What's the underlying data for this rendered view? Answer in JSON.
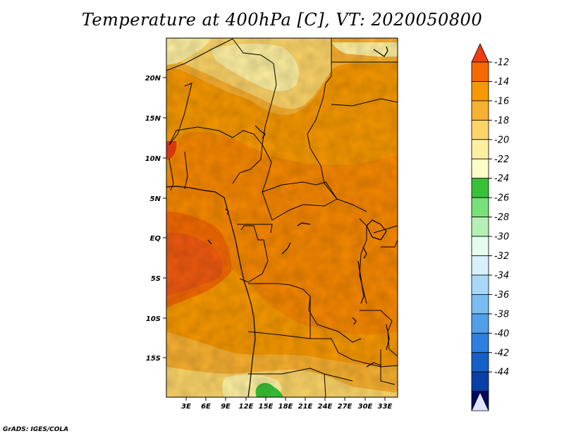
{
  "title": "Temperature at 400hPa [C], VT: 2020050800",
  "credit": "GrADS: IGES/COLA",
  "map": {
    "lat_ticks": [
      "20N",
      "15N",
      "10N",
      "5N",
      "EQ",
      "5S",
      "10S",
      "15S"
    ],
    "lon_ticks": [
      "3E",
      "6E",
      "9E",
      "12E",
      "15E",
      "18E",
      "21E",
      "24E",
      "27E",
      "30E",
      "33E"
    ],
    "lon_range": [
      0,
      35
    ],
    "lat_range": [
      -20,
      25
    ]
  },
  "colorbar": {
    "labels": [
      "-12",
      "-14",
      "-16",
      "-18",
      "-20",
      "-22",
      "-24",
      "-26",
      "-28",
      "-30",
      "-32",
      "-34",
      "-36",
      "-38",
      "-40",
      "-42",
      "-44"
    ],
    "colors": [
      "#f03c10",
      "#f56a00",
      "#f69800",
      "#f8b030",
      "#fcd468",
      "#fff0a0",
      "#fffcc8",
      "#38c038",
      "#78e078",
      "#b4f0b4",
      "#e4fcf0",
      "#d8f0fc",
      "#a8d8f8",
      "#78bcf0",
      "#50a0e8",
      "#2c80e0",
      "#1460c8",
      "#0840a8",
      "#000860",
      "#e0e4fc"
    ]
  },
  "chart_data": {
    "type": "heatmap",
    "title": "Temperature at 400hPa [C], VT: 2020050800",
    "variable": "Temperature at 400hPa",
    "units": "C",
    "valid_time": "2020050800",
    "lon_ticks": [
      "3E",
      "6E",
      "9E",
      "12E",
      "15E",
      "18E",
      "21E",
      "24E",
      "27E",
      "30E",
      "33E"
    ],
    "lat_ticks": [
      "20N",
      "15N",
      "10N",
      "5N",
      "EQ",
      "5S",
      "10S",
      "15S"
    ],
    "color_levels": [
      -12,
      -14,
      -16,
      -18,
      -20,
      -22,
      -24,
      -26,
      -28,
      -30,
      -32,
      -34,
      -36,
      -38,
      -40,
      -42,
      -44
    ],
    "regions": [
      {
        "area": "Gulf of Guinea / southeast Atlantic (0-7E, 2N-10S)",
        "value_range": [
          -14,
          -12
        ]
      },
      {
        "area": "Central Africa interior",
        "value_range": [
          -16,
          -14
        ]
      },
      {
        "area": "Northern Sahara (Libya / northern Chad)",
        "value_range": [
          -20,
          -18
        ]
      },
      {
        "area": "Southern Angola / Namibia",
        "value_range": [
          -20,
          -16
        ]
      },
      {
        "area": "Northern Namibia spot (~14-16E, 19S)",
        "value_range": [
          -26,
          -22
        ]
      }
    ]
  }
}
